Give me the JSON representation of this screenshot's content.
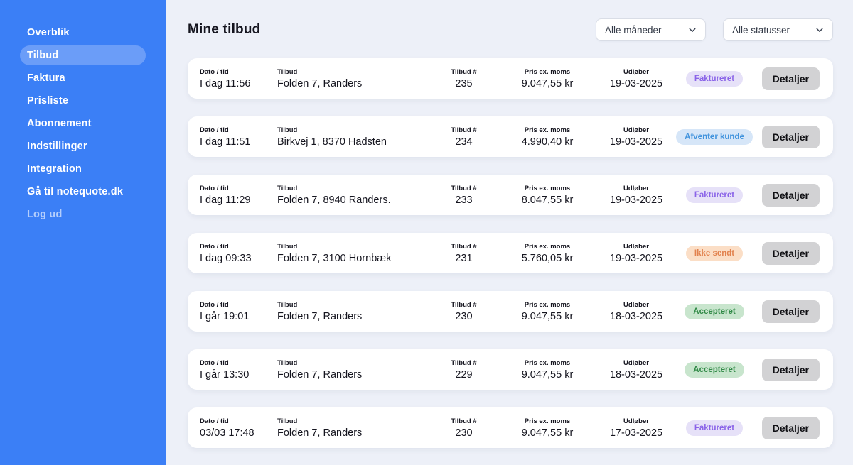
{
  "colors": {
    "sidebar_bg": "#3b7ff6",
    "sidebar_active_bg": "#6b9df8",
    "main_bg": "#edf0f8",
    "card_bg": "#ffffff",
    "badge_invoiced_bg": "#e6e1f8",
    "badge_invoiced_text": "#8a63e8",
    "badge_awaiting_bg": "#d6e6f8",
    "badge_awaiting_text": "#4193dd",
    "badge_notsent_bg": "#fbdec6",
    "badge_notsent_text": "#e2824e",
    "badge_accepted_bg": "#c8e5cd",
    "badge_accepted_text": "#318a47",
    "detail_button_bg": "#d2d2d4"
  },
  "sidebar": {
    "items": [
      {
        "label": "Overblik",
        "state": ""
      },
      {
        "label": "Tilbud",
        "state": "active"
      },
      {
        "label": "Faktura",
        "state": ""
      },
      {
        "label": "Prisliste",
        "state": ""
      },
      {
        "label": "Abonnement",
        "state": ""
      },
      {
        "label": "Indstillinger",
        "state": ""
      },
      {
        "label": "Integration",
        "state": ""
      },
      {
        "label": "Gå til notequote.dk",
        "state": ""
      },
      {
        "label": "Log ud",
        "state": "muted"
      }
    ]
  },
  "header": {
    "title": "Mine tilbud",
    "month_filter": "Alle måneder",
    "status_filter": "Alle statusser"
  },
  "table": {
    "labels": {
      "date": "Dato / tid",
      "offer": "Tilbud",
      "number": "Tilbud #",
      "price": "Pris ex. moms",
      "expires": "Udløber"
    },
    "detail_button": "Detaljer",
    "rows": [
      {
        "date": "I dag 11:56",
        "offer": "Folden 7, Randers",
        "number": "235",
        "price": "9.047,55 kr",
        "expires": "19-03-2025",
        "status": "Faktureret",
        "status_type": "invoiced"
      },
      {
        "date": "I dag 11:51",
        "offer": "Birkvej 1, 8370 Hadsten",
        "number": "234",
        "price": "4.990,40 kr",
        "expires": "19-03-2025",
        "status": "Afventer kunde",
        "status_type": "awaiting"
      },
      {
        "date": "I dag 11:29",
        "offer": "Folden 7, 8940 Randers.",
        "number": "233",
        "price": "8.047,55 kr",
        "expires": "19-03-2025",
        "status": "Faktureret",
        "status_type": "invoiced"
      },
      {
        "date": "I dag 09:33",
        "offer": "Folden 7, 3100 Hornbæk",
        "number": "231",
        "price": "5.760,05 kr",
        "expires": "19-03-2025",
        "status": "Ikke sendt",
        "status_type": "notsent"
      },
      {
        "date": "I går 19:01",
        "offer": "Folden 7, Randers",
        "number": "230",
        "price": "9.047,55 kr",
        "expires": "18-03-2025",
        "status": "Accepteret",
        "status_type": "accepted"
      },
      {
        "date": "I går 13:30",
        "offer": "Folden 7, Randers",
        "number": "229",
        "price": "9.047,55 kr",
        "expires": "18-03-2025",
        "status": "Accepteret",
        "status_type": "accepted"
      },
      {
        "date": "03/03 17:48",
        "offer": "Folden 7, Randers",
        "number": "230",
        "price": "9.047,55 kr",
        "expires": "17-03-2025",
        "status": "Faktureret",
        "status_type": "invoiced"
      }
    ]
  }
}
